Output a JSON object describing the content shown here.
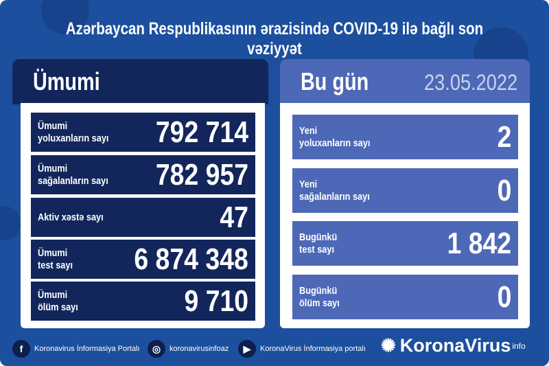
{
  "title": "Azərbaycan Respublikasının ərazisində COVID-19 ilə bağlı son vəziyyət",
  "colors": {
    "background": "#1c4f9e",
    "left_panel": "#13265c",
    "right_panel": "#4d68b6"
  },
  "left": {
    "header": "Ümumi",
    "rows": [
      {
        "label": "Ümumi\nyoluxanların sayı",
        "value": "792 714"
      },
      {
        "label": "Ümumi\nsağalanların sayı",
        "value": "782 957"
      },
      {
        "label": "Aktiv xəstə sayı",
        "value": "47"
      },
      {
        "label": "Ümumi\ntest sayı",
        "value": "6 874 348"
      },
      {
        "label": "Ümumi\nölüm sayı",
        "value": "9 710"
      }
    ]
  },
  "right": {
    "header": "Bu gün",
    "date": "23.05.2022",
    "rows": [
      {
        "label": "Yeni\nyoluxanların sayı",
        "value": "2"
      },
      {
        "label": "Yeni\nsağalanların sayı",
        "value": "0"
      },
      {
        "label": "Bugünkü\ntest sayı",
        "value": "1 842"
      },
      {
        "label": "Bugünkü\nölüm sayı",
        "value": "0"
      }
    ]
  },
  "footer": {
    "facebook": "Koronavirus İnformasiya Portalı",
    "instagram": "koronavirusinfoaz",
    "youtube": "KoronaVirus İnformasiya portalı",
    "brand": "KoronaVirus",
    "brand_sup": "info"
  }
}
